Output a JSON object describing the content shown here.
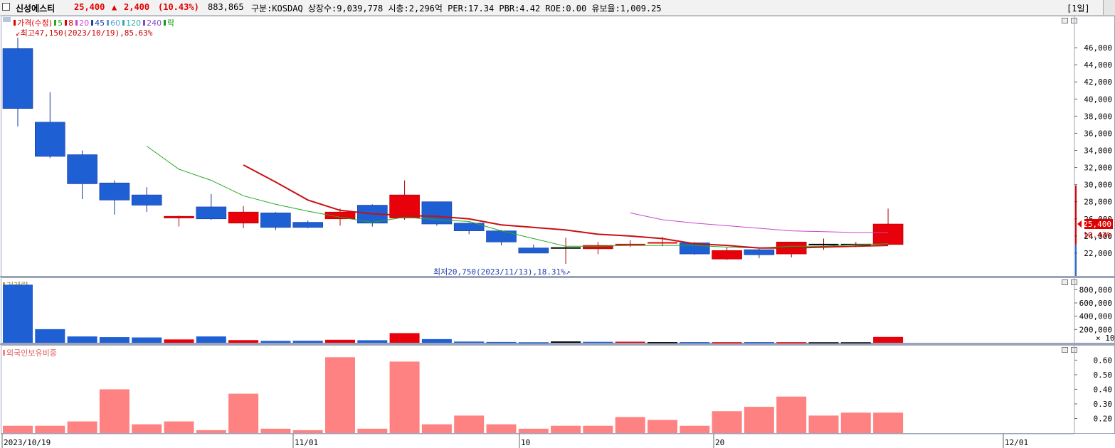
{
  "header": {
    "name": "신성에스티",
    "price": "25,400",
    "change_arrow": "▲",
    "change": "2,400",
    "change_pct": "(10.43%)",
    "volume": "883,865",
    "info": "구분:KOSDAQ 상장수:9,039,778 시총:2,296억 PER:17.34 PBR:4.42 ROE:0.00 유보율:1,009.25",
    "period": "[1일]"
  },
  "legend": {
    "items": [
      {
        "label": "가격(수정)",
        "color": "#e00000"
      },
      {
        "label": "5",
        "color": "#22aa22"
      },
      {
        "label": "8",
        "color": "#e00000"
      },
      {
        "label": "20",
        "color": "#cc44cc"
      },
      {
        "label": "45",
        "color": "#1e3fae"
      },
      {
        "label": "60",
        "color": "#5aa0d8"
      },
      {
        "label": "120",
        "color": "#33aaaa"
      },
      {
        "label": "240",
        "color": "#8844cc"
      },
      {
        "label": "락",
        "color": "#119911"
      }
    ]
  },
  "annotations": {
    "high": "최고47,150(2023/10/19),85.63%",
    "low": "최저20,750(2023/11/13),18.31%"
  },
  "volume_panel": {
    "title": "거래량",
    "unit": "× 10"
  },
  "foreign_panel": {
    "title": "외국인보유비중"
  },
  "chart_data": [
    {
      "type": "candlestick",
      "title": "가격(수정)",
      "ylim": [
        20000,
        48000
      ],
      "yticks": [
        22000,
        24000,
        26000,
        28000,
        30000,
        32000,
        34000,
        36000,
        38000,
        40000,
        42000,
        44000,
        46000
      ],
      "ytick_labels": [
        "22,000",
        "24,000",
        "26,000",
        "28,000",
        "30,000",
        "32,000",
        "34,000",
        "36,000",
        "38,000",
        "40,000",
        "42,000",
        "44,000",
        "46,000"
      ],
      "current_price_label": "25,400",
      "current_pct_label": "10.43%",
      "xlabels": [
        "2023/10/19",
        "11/01",
        "10",
        "20",
        "12/01"
      ],
      "candles": [
        {
          "o": 45900,
          "h": 47150,
          "l": 36800,
          "c": 38900
        },
        {
          "o": 37300,
          "h": 40800,
          "l": 33100,
          "c": 33300
        },
        {
          "o": 33500,
          "h": 34000,
          "l": 28300,
          "c": 30100
        },
        {
          "o": 30200,
          "h": 30500,
          "l": 26500,
          "c": 28200
        },
        {
          "o": 28800,
          "h": 29700,
          "l": 26800,
          "c": 27600
        },
        {
          "o": 26100,
          "h": 26400,
          "l": 25100,
          "c": 26300
        },
        {
          "o": 27400,
          "h": 28900,
          "l": 25900,
          "c": 26000
        },
        {
          "o": 25500,
          "h": 27500,
          "l": 24900,
          "c": 26800
        },
        {
          "o": 26700,
          "h": 26800,
          "l": 24700,
          "c": 25000
        },
        {
          "o": 25600,
          "h": 25800,
          "l": 24900,
          "c": 25000
        },
        {
          "o": 26000,
          "h": 27200,
          "l": 25200,
          "c": 26800
        },
        {
          "o": 27600,
          "h": 27700,
          "l": 25100,
          "c": 25500
        },
        {
          "o": 26100,
          "h": 30500,
          "l": 25900,
          "c": 28800
        },
        {
          "o": 28000,
          "h": 28000,
          "l": 25200,
          "c": 25400
        },
        {
          "o": 25500,
          "h": 25600,
          "l": 24200,
          "c": 24600
        },
        {
          "o": 24600,
          "h": 24700,
          "l": 22900,
          "c": 23300
        },
        {
          "o": 22600,
          "h": 23000,
          "l": 22000,
          "c": 22000
        },
        {
          "o": 22600,
          "h": 23800,
          "l": 20750,
          "c": 22600
        },
        {
          "o": 22500,
          "h": 23300,
          "l": 21900,
          "c": 22900
        },
        {
          "o": 23000,
          "h": 23500,
          "l": 22700,
          "c": 23000
        },
        {
          "o": 23200,
          "h": 23900,
          "l": 22800,
          "c": 23200
        },
        {
          "o": 23200,
          "h": 23300,
          "l": 21800,
          "c": 21900
        },
        {
          "o": 21300,
          "h": 22700,
          "l": 21200,
          "c": 22300
        },
        {
          "o": 22400,
          "h": 22500,
          "l": 21400,
          "c": 21800
        },
        {
          "o": 21900,
          "h": 23300,
          "l": 21500,
          "c": 23300
        },
        {
          "o": 23000,
          "h": 23700,
          "l": 22400,
          "c": 23000
        },
        {
          "o": 23000,
          "h": 23300,
          "l": 22700,
          "c": 23000
        },
        {
          "o": 23000,
          "h": 27200,
          "l": 23000,
          "c": 25400
        }
      ],
      "series": [
        {
          "name": "5",
          "color": "#22aa22",
          "values": [
            null,
            null,
            null,
            null,
            34500,
            31800,
            30500,
            28700,
            27700,
            26900,
            26200,
            25600,
            26200,
            25900,
            25700,
            24600,
            23700,
            22800,
            22800,
            22900,
            22900,
            22900,
            22700,
            22600,
            22800,
            22800,
            23000,
            23100
          ]
        },
        {
          "name": "8",
          "color": "#c81010",
          "values": [
            null,
            null,
            null,
            null,
            null,
            null,
            null,
            32300,
            30300,
            28200,
            27000,
            26600,
            26400,
            26300,
            26000,
            25300,
            25000,
            24700,
            24200,
            24000,
            23700,
            23100,
            22900,
            22600,
            22600,
            22700,
            22800,
            22900
          ]
        },
        {
          "name": "20",
          "color": "#cc44cc",
          "values": [
            null,
            null,
            null,
            null,
            null,
            null,
            null,
            null,
            null,
            null,
            null,
            null,
            null,
            null,
            null,
            null,
            null,
            null,
            null,
            26700,
            25900,
            25500,
            25200,
            24900,
            24600,
            24500,
            24400,
            24400
          ]
        }
      ]
    },
    {
      "type": "bar",
      "title": "거래량",
      "unit": "× 10",
      "ylim": [
        0,
        900000
      ],
      "yticks": [
        200000,
        400000,
        600000,
        800000
      ],
      "ytick_labels": [
        "200,000",
        "400,000",
        "600,000",
        "800,000"
      ],
      "values": [
        875000,
        205000,
        95000,
        85000,
        80000,
        50000,
        95000,
        40000,
        28000,
        30000,
        45000,
        38000,
        145000,
        55000,
        18000,
        12000,
        8000,
        20000,
        14000,
        16000,
        10000,
        10000,
        9000,
        10000,
        9000,
        8000,
        8000,
        88000
      ],
      "colors": [
        "blue",
        "blue",
        "blue",
        "blue",
        "blue",
        "red",
        "blue",
        "red",
        "blue",
        "blue",
        "red",
        "blue",
        "red",
        "blue",
        "blue",
        "blue",
        "blue",
        "black",
        "blue",
        "red",
        "black",
        "blue",
        "red",
        "blue",
        "red",
        "black",
        "black",
        "red"
      ]
    },
    {
      "type": "bar",
      "title": "외국인보유비중",
      "ylim": [
        0.1,
        0.68
      ],
      "yticks": [
        0.2,
        0.3,
        0.4,
        0.5,
        0.6
      ],
      "ytick_labels": [
        "0.20",
        "0.30",
        "0.40",
        "0.50",
        "0.60"
      ],
      "values": [
        0.15,
        0.15,
        0.18,
        0.4,
        0.16,
        0.18,
        0.12,
        0.37,
        0.13,
        0.12,
        0.62,
        0.13,
        0.59,
        0.16,
        0.22,
        0.16,
        0.13,
        0.15,
        0.15,
        0.21,
        0.19,
        0.15,
        0.25,
        0.28,
        0.35,
        0.22,
        0.24,
        0.24
      ]
    }
  ]
}
